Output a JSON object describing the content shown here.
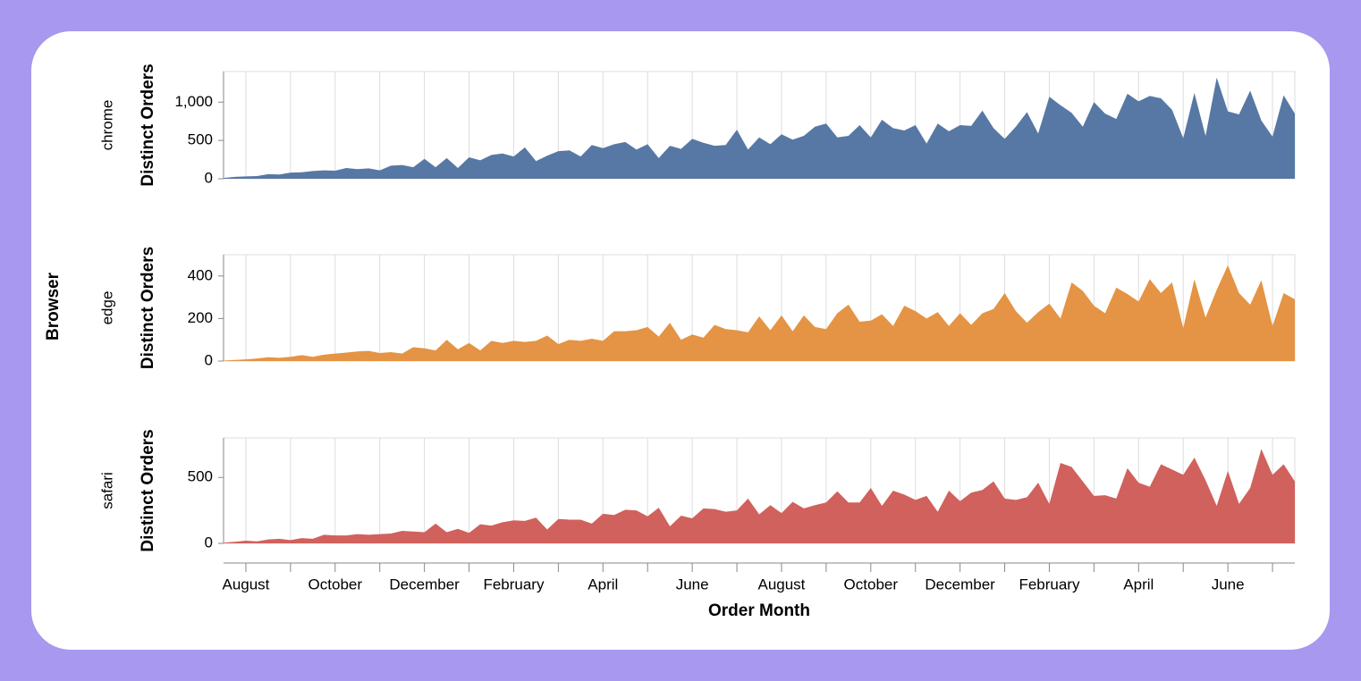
{
  "chart_data": {
    "type": "area",
    "facet_title": "Browser",
    "x_title": "Order Month",
    "y_title": "Distinct Orders",
    "categories": [
      null,
      null,
      "August",
      null,
      null,
      null,
      null,
      null,
      null,
      null,
      "October",
      null,
      null,
      null,
      null,
      null,
      null,
      null,
      "December",
      null,
      null,
      null,
      null,
      null,
      null,
      null,
      "February",
      null,
      null,
      null,
      null,
      null,
      null,
      null,
      "April",
      null,
      null,
      null,
      null,
      null,
      null,
      null,
      "June",
      null,
      null,
      null,
      null,
      null,
      null,
      null,
      "August",
      null,
      null,
      null,
      null,
      null,
      null,
      null,
      "October",
      null,
      null,
      null,
      null,
      null,
      null,
      null,
      "December",
      null,
      null,
      null,
      null,
      null,
      null,
      null,
      "February",
      null,
      null,
      null,
      null,
      null,
      null,
      null,
      "April",
      null,
      null,
      null,
      null,
      null,
      null,
      null,
      "June",
      null,
      null,
      null,
      null,
      null,
      null
    ],
    "series": [
      {
        "name": "chrome",
        "color": "#5778a4",
        "ylim": [
          0,
          1400
        ],
        "yticks": [
          0,
          500,
          {
            "value": 1000,
            "label": "1,000"
          }
        ],
        "values": [
          10,
          25,
          30,
          35,
          60,
          55,
          80,
          85,
          100,
          110,
          105,
          140,
          125,
          135,
          110,
          170,
          180,
          150,
          260,
          150,
          270,
          140,
          280,
          240,
          310,
          330,
          290,
          410,
          230,
          300,
          360,
          370,
          290,
          440,
          400,
          450,
          480,
          380,
          450,
          270,
          430,
          390,
          520,
          470,
          430,
          440,
          640,
          380,
          540,
          450,
          580,
          510,
          560,
          680,
          720,
          540,
          560,
          700,
          540,
          770,
          660,
          630,
          700,
          460,
          720,
          620,
          700,
          690,
          890,
          660,
          520,
          680,
          870,
          590,
          1070,
          960,
          860,
          680,
          1000,
          850,
          780,
          1110,
          1010,
          1080,
          1050,
          900,
          530,
          1120,
          560,
          1320,
          880,
          840,
          1150,
          760,
          550,
          1090,
          850
        ]
      },
      {
        "name": "edge",
        "color": "#e49444",
        "ylim": [
          0,
          500
        ],
        "yticks": [
          0,
          200,
          400
        ],
        "values": [
          2,
          5,
          8,
          12,
          18,
          15,
          20,
          28,
          20,
          30,
          35,
          40,
          45,
          48,
          38,
          42,
          35,
          65,
          60,
          50,
          100,
          55,
          85,
          50,
          95,
          85,
          95,
          90,
          95,
          120,
          80,
          100,
          95,
          105,
          95,
          140,
          140,
          145,
          160,
          115,
          180,
          100,
          125,
          110,
          170,
          150,
          145,
          135,
          210,
          145,
          215,
          140,
          215,
          160,
          150,
          225,
          265,
          185,
          190,
          220,
          165,
          260,
          235,
          200,
          230,
          165,
          225,
          170,
          225,
          245,
          320,
          235,
          180,
          230,
          270,
          200,
          370,
          330,
          260,
          225,
          345,
          315,
          280,
          385,
          320,
          370,
          155,
          385,
          205,
          335,
          450,
          320,
          265,
          380,
          165,
          320,
          290
        ]
      },
      {
        "name": "safari",
        "color": "#d1615d",
        "ylim": [
          0,
          800
        ],
        "yticks": [
          0,
          500
        ],
        "values": [
          5,
          12,
          20,
          15,
          30,
          35,
          25,
          40,
          35,
          65,
          60,
          60,
          70,
          65,
          70,
          75,
          95,
          90,
          85,
          150,
          85,
          110,
          80,
          145,
          135,
          160,
          175,
          170,
          195,
          105,
          185,
          180,
          180,
          150,
          225,
          215,
          255,
          250,
          205,
          270,
          130,
          210,
          190,
          265,
          260,
          240,
          250,
          340,
          220,
          290,
          230,
          315,
          265,
          290,
          310,
          395,
          310,
          310,
          420,
          285,
          400,
          370,
          330,
          360,
          240,
          400,
          320,
          385,
          405,
          470,
          340,
          330,
          350,
          460,
          300,
          610,
          580,
          470,
          360,
          365,
          340,
          570,
          460,
          430,
          600,
          560,
          520,
          650,
          480,
          285,
          550,
          300,
          420,
          716,
          520,
          600,
          470
        ]
      }
    ]
  }
}
